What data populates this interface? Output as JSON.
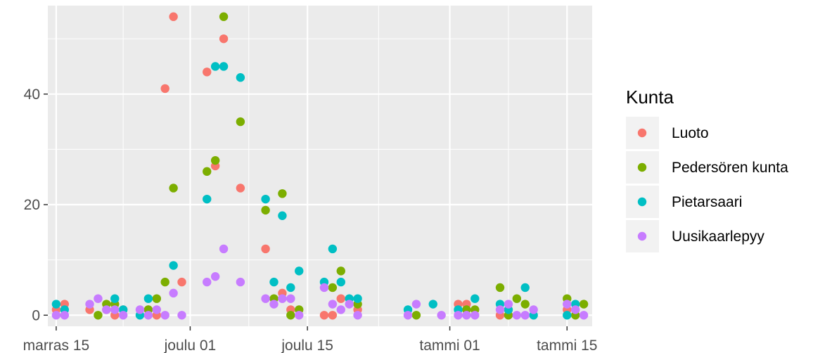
{
  "chart_data": {
    "type": "scatter",
    "x_axis": {
      "type": "date",
      "range": [
        "2020-11-14",
        "2021-01-18"
      ],
      "ticks": [
        {
          "date": "2020-11-15",
          "label": "marras 15"
        },
        {
          "date": "2020-12-01",
          "label": "joulu 01"
        },
        {
          "date": "2020-12-15",
          "label": "joulu 15"
        },
        {
          "date": "2021-01-01",
          "label": "tammi 01"
        },
        {
          "date": "2021-01-15",
          "label": "tammi 15"
        }
      ]
    },
    "y_axis": {
      "range": [
        -2,
        56
      ],
      "ticks": [
        0,
        20,
        40
      ]
    },
    "grid": true,
    "legend": {
      "title": "Kunta",
      "placement": "right"
    },
    "series": [
      {
        "name": "Luoto",
        "color": "#F8766D",
        "points": [
          {
            "x": "2020-11-15",
            "y": 1
          },
          {
            "x": "2020-11-16",
            "y": 2
          },
          {
            "x": "2020-11-19",
            "y": 1
          },
          {
            "x": "2020-11-21",
            "y": 1
          },
          {
            "x": "2020-11-22",
            "y": 0
          },
          {
            "x": "2020-11-23",
            "y": 1
          },
          {
            "x": "2020-11-26",
            "y": 1
          },
          {
            "x": "2020-11-27",
            "y": 0
          },
          {
            "x": "2020-11-28",
            "y": 41
          },
          {
            "x": "2020-11-29",
            "y": 54
          },
          {
            "x": "2020-11-30",
            "y": 6
          },
          {
            "x": "2020-12-03",
            "y": 44
          },
          {
            "x": "2020-12-04",
            "y": 27
          },
          {
            "x": "2020-12-05",
            "y": 50
          },
          {
            "x": "2020-12-07",
            "y": 23
          },
          {
            "x": "2020-12-10",
            "y": 12
          },
          {
            "x": "2020-12-12",
            "y": 4
          },
          {
            "x": "2020-12-13",
            "y": 1
          },
          {
            "x": "2020-12-17",
            "y": 0
          },
          {
            "x": "2020-12-18",
            "y": 0
          },
          {
            "x": "2020-12-19",
            "y": 3
          },
          {
            "x": "2020-12-21",
            "y": 1
          },
          {
            "x": "2021-01-02",
            "y": 2
          },
          {
            "x": "2021-01-03",
            "y": 2
          },
          {
            "x": "2021-01-07",
            "y": 0
          },
          {
            "x": "2021-01-08",
            "y": 1
          },
          {
            "x": "2021-01-15",
            "y": 1
          },
          {
            "x": "2021-01-16",
            "y": 1
          }
        ]
      },
      {
        "name": "Pedersören kunta",
        "color": "#7CAE00",
        "points": [
          {
            "x": "2020-11-20",
            "y": 0
          },
          {
            "x": "2020-11-21",
            "y": 2
          },
          {
            "x": "2020-11-22",
            "y": 2
          },
          {
            "x": "2020-11-26",
            "y": 1
          },
          {
            "x": "2020-11-27",
            "y": 3
          },
          {
            "x": "2020-11-28",
            "y": 6
          },
          {
            "x": "2020-11-29",
            "y": 23
          },
          {
            "x": "2020-12-03",
            "y": 26
          },
          {
            "x": "2020-12-04",
            "y": 28
          },
          {
            "x": "2020-12-05",
            "y": 54
          },
          {
            "x": "2020-12-07",
            "y": 35
          },
          {
            "x": "2020-12-10",
            "y": 19
          },
          {
            "x": "2020-12-11",
            "y": 3
          },
          {
            "x": "2020-12-12",
            "y": 22
          },
          {
            "x": "2020-12-13",
            "y": 0
          },
          {
            "x": "2020-12-14",
            "y": 1
          },
          {
            "x": "2020-12-18",
            "y": 5
          },
          {
            "x": "2020-12-19",
            "y": 8
          },
          {
            "x": "2020-12-21",
            "y": 2
          },
          {
            "x": "2020-12-28",
            "y": 0
          },
          {
            "x": "2021-01-03",
            "y": 1
          },
          {
            "x": "2021-01-04",
            "y": 1
          },
          {
            "x": "2021-01-07",
            "y": 5
          },
          {
            "x": "2021-01-08",
            "y": 0
          },
          {
            "x": "2021-01-09",
            "y": 3
          },
          {
            "x": "2021-01-10",
            "y": 2
          },
          {
            "x": "2021-01-15",
            "y": 3
          },
          {
            "x": "2021-01-16",
            "y": 0
          },
          {
            "x": "2021-01-17",
            "y": 2
          }
        ]
      },
      {
        "name": "Pietarsaari",
        "color": "#00BFC4",
        "points": [
          {
            "x": "2020-11-15",
            "y": 2
          },
          {
            "x": "2020-11-16",
            "y": 1
          },
          {
            "x": "2020-11-22",
            "y": 3
          },
          {
            "x": "2020-11-23",
            "y": 1
          },
          {
            "x": "2020-11-25",
            "y": 0
          },
          {
            "x": "2020-11-26",
            "y": 3
          },
          {
            "x": "2020-11-29",
            "y": 9
          },
          {
            "x": "2020-12-03",
            "y": 21
          },
          {
            "x": "2020-12-04",
            "y": 45
          },
          {
            "x": "2020-12-05",
            "y": 45
          },
          {
            "x": "2020-12-07",
            "y": 43
          },
          {
            "x": "2020-12-10",
            "y": 21
          },
          {
            "x": "2020-12-11",
            "y": 6
          },
          {
            "x": "2020-12-12",
            "y": 18
          },
          {
            "x": "2020-12-13",
            "y": 5
          },
          {
            "x": "2020-12-14",
            "y": 8
          },
          {
            "x": "2020-12-17",
            "y": 6
          },
          {
            "x": "2020-12-18",
            "y": 12
          },
          {
            "x": "2020-12-19",
            "y": 6
          },
          {
            "x": "2020-12-20",
            "y": 3
          },
          {
            "x": "2020-12-21",
            "y": 3
          },
          {
            "x": "2020-12-27",
            "y": 1
          },
          {
            "x": "2020-12-30",
            "y": 2
          },
          {
            "x": "2021-01-02",
            "y": 1
          },
          {
            "x": "2021-01-04",
            "y": 3
          },
          {
            "x": "2021-01-07",
            "y": 2
          },
          {
            "x": "2021-01-08",
            "y": 1
          },
          {
            "x": "2021-01-10",
            "y": 5
          },
          {
            "x": "2021-01-11",
            "y": 0
          },
          {
            "x": "2021-01-15",
            "y": 0
          },
          {
            "x": "2021-01-16",
            "y": 2
          }
        ]
      },
      {
        "name": "Uusikaarlepyy",
        "color": "#C77CFF",
        "points": [
          {
            "x": "2020-11-15",
            "y": 0
          },
          {
            "x": "2020-11-16",
            "y": 0
          },
          {
            "x": "2020-11-19",
            "y": 2
          },
          {
            "x": "2020-11-20",
            "y": 3
          },
          {
            "x": "2020-11-21",
            "y": 1
          },
          {
            "x": "2020-11-22",
            "y": 1
          },
          {
            "x": "2020-11-23",
            "y": 0
          },
          {
            "x": "2020-11-25",
            "y": 1
          },
          {
            "x": "2020-11-26",
            "y": 0
          },
          {
            "x": "2020-11-27",
            "y": 1
          },
          {
            "x": "2020-11-28",
            "y": 0
          },
          {
            "x": "2020-11-29",
            "y": 4
          },
          {
            "x": "2020-11-30",
            "y": 0
          },
          {
            "x": "2020-12-03",
            "y": 6
          },
          {
            "x": "2020-12-04",
            "y": 7
          },
          {
            "x": "2020-12-05",
            "y": 12
          },
          {
            "x": "2020-12-07",
            "y": 6
          },
          {
            "x": "2020-12-10",
            "y": 3
          },
          {
            "x": "2020-12-11",
            "y": 2
          },
          {
            "x": "2020-12-12",
            "y": 3
          },
          {
            "x": "2020-12-13",
            "y": 3
          },
          {
            "x": "2020-12-14",
            "y": 0
          },
          {
            "x": "2020-12-17",
            "y": 5
          },
          {
            "x": "2020-12-18",
            "y": 2
          },
          {
            "x": "2020-12-19",
            "y": 1
          },
          {
            "x": "2020-12-20",
            "y": 2
          },
          {
            "x": "2020-12-21",
            "y": 0
          },
          {
            "x": "2020-12-27",
            "y": 0
          },
          {
            "x": "2020-12-28",
            "y": 2
          },
          {
            "x": "2020-12-31",
            "y": 0
          },
          {
            "x": "2021-01-02",
            "y": 0
          },
          {
            "x": "2021-01-03",
            "y": 0
          },
          {
            "x": "2021-01-04",
            "y": 0
          },
          {
            "x": "2021-01-07",
            "y": 1
          },
          {
            "x": "2021-01-08",
            "y": 2
          },
          {
            "x": "2021-01-09",
            "y": 0
          },
          {
            "x": "2021-01-10",
            "y": 0
          },
          {
            "x": "2021-01-11",
            "y": 1
          },
          {
            "x": "2021-01-15",
            "y": 2
          },
          {
            "x": "2021-01-16",
            "y": 1
          },
          {
            "x": "2021-01-17",
            "y": 0
          }
        ]
      }
    ]
  }
}
